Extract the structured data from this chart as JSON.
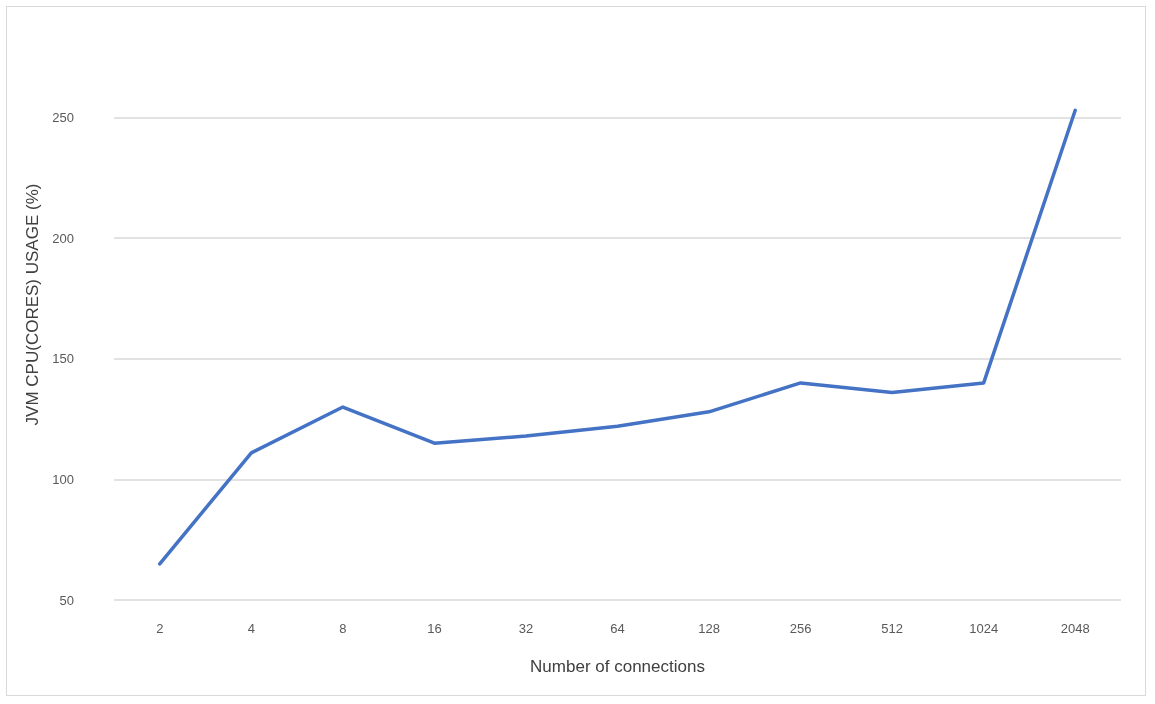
{
  "chart_data": {
    "type": "line",
    "xlabel": "Number of connections",
    "ylabel": "JVM CPU(CORES) USAGE (%)",
    "categories": [
      "2",
      "4",
      "8",
      "16",
      "32",
      "64",
      "128",
      "256",
      "512",
      "1024",
      "2048"
    ],
    "series": [
      {
        "color": "#4472c4",
        "values": [
          65,
          111,
          130,
          115,
          118,
          122,
          128,
          140,
          136,
          140,
          253
        ]
      }
    ],
    "ylim": [
      50,
      295
    ],
    "yticks": [
      50,
      100,
      150,
      200,
      250
    ],
    "grid": "y",
    "marker": "none",
    "line_style": "solid"
  }
}
